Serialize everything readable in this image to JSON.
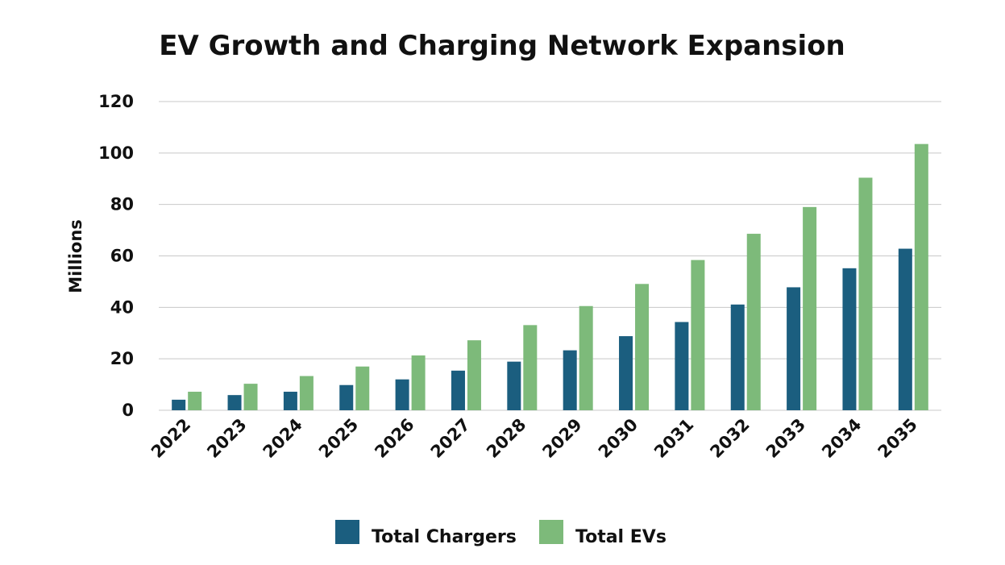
{
  "chart_data": {
    "type": "bar",
    "title": "EV Growth and Charging Network Expansion",
    "xlabel": "",
    "ylabel": "Millions",
    "ylim": [
      0,
      120
    ],
    "yticks": [
      0,
      20,
      40,
      60,
      80,
      100,
      120
    ],
    "grid": true,
    "legend_position": "bottom",
    "categories": [
      "2022",
      "2023",
      "2024",
      "2025",
      "2026",
      "2027",
      "2028",
      "2029",
      "2030",
      "2031",
      "2032",
      "2033",
      "2034",
      "2035"
    ],
    "series": [
      {
        "name": "Total Chargers",
        "color": "#1b5e7f",
        "values": [
          4.1,
          5.9,
          7.2,
          9.8,
          12.0,
          15.4,
          18.9,
          23.3,
          28.8,
          34.3,
          41.1,
          47.8,
          55.2,
          62.8
        ]
      },
      {
        "name": "Total EVs",
        "color": "#7dba7a",
        "values": [
          7.2,
          10.3,
          13.3,
          17.0,
          21.3,
          27.2,
          33.1,
          40.5,
          49.1,
          58.4,
          68.6,
          79.0,
          90.4,
          103.5
        ]
      }
    ]
  }
}
